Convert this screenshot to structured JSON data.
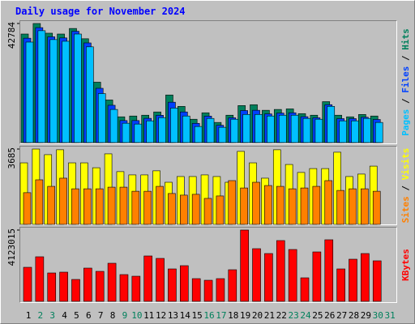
{
  "chart_data": [
    {
      "type": "bar",
      "title": "Daily usage for November 2024",
      "legend_separator": "/",
      "ylim": [
        0,
        42784
      ],
      "yticks": [
        42784
      ],
      "series": [
        {
          "name": "Hits",
          "color": "#00805c",
          "values": [
            39000,
            42784,
            39300,
            39000,
            41000,
            37300,
            21700,
            15300,
            9250,
            9540,
            9830,
            11000,
            17100,
            13000,
            8380,
            10700,
            7230,
            9830,
            13300,
            13600,
            11600,
            11900,
            12100,
            10400,
            9830,
            14700,
            9830,
            9250,
            10100,
            9540,
            0
          ]
        },
        {
          "name": "Files",
          "color": "#0040ff",
          "values": [
            37500,
            41300,
            38000,
            37600,
            40000,
            35800,
            19500,
            13400,
            7900,
            7900,
            8700,
            9800,
            14500,
            11000,
            6900,
            9500,
            6200,
            8900,
            11500,
            11600,
            10300,
            10600,
            10700,
            9300,
            8900,
            13600,
            8600,
            8600,
            9100,
            8300,
            0
          ]
        },
        {
          "name": "Pages",
          "color": "#00c0ff",
          "values": [
            36100,
            40200,
            37000,
            36400,
            39000,
            34400,
            17600,
            11900,
            6940,
            6650,
            7800,
            8960,
            12400,
            9540,
            5780,
            8670,
            5490,
            8380,
            10100,
            10100,
            9540,
            9830,
            9830,
            8670,
            8380,
            13000,
            7800,
            7800,
            8670,
            7230,
            0
          ]
        }
      ]
    },
    {
      "type": "bar",
      "legend_separator": "/",
      "ylim": [
        0,
        3685
      ],
      "yticks": [
        3685
      ],
      "series": [
        {
          "name": "Visits",
          "color": "#ffff00",
          "values": [
            3010,
            3685,
            3410,
            3650,
            3010,
            3010,
            2770,
            3450,
            2580,
            2420,
            2420,
            2620,
            2060,
            2340,
            2340,
            2420,
            2340,
            2060,
            3570,
            3010,
            2260,
            3650,
            2930,
            2540,
            2730,
            2730,
            3530,
            2340,
            2460,
            2850,
            0
          ]
        },
        {
          "name": "Sites",
          "color": "#ff8000",
          "values": [
            1550,
            2180,
            1860,
            2260,
            1740,
            1740,
            1740,
            1820,
            1820,
            1620,
            1620,
            1860,
            1510,
            1430,
            1470,
            1270,
            1390,
            2140,
            1780,
            2060,
            1900,
            1860,
            1740,
            1780,
            1860,
            2140,
            1660,
            1740,
            1740,
            1620,
            0
          ]
        }
      ]
    },
    {
      "type": "bar",
      "ylim": [
        0,
        4123015
      ],
      "yticks": [
        4123015
      ],
      "categories": [
        "1",
        "2",
        "3",
        "4",
        "5",
        "6",
        "7",
        "8",
        "9",
        "10",
        "11",
        "12",
        "13",
        "14",
        "15",
        "16",
        "17",
        "18",
        "19",
        "20",
        "21",
        "22",
        "23",
        "24",
        "25",
        "26",
        "27",
        "28",
        "29",
        "30",
        "31"
      ],
      "label_colors": [
        "#000000",
        "#00805c",
        "#00805c",
        "#000000",
        "#000000",
        "#000000",
        "#000000",
        "#000000",
        "#00805c",
        "#00805c",
        "#000000",
        "#000000",
        "#000000",
        "#000000",
        "#000000",
        "#00805c",
        "#00805c",
        "#000000",
        "#000000",
        "#000000",
        "#000000",
        "#000000",
        "#00805c",
        "#00805c",
        "#000000",
        "#000000",
        "#000000",
        "#000000",
        "#000000",
        "#00805c",
        "#00805c"
      ],
      "series": [
        {
          "name": "KBytes",
          "color": "#ff0000",
          "values": [
            1968000,
            2577000,
            1640000,
            1687000,
            1265000,
            1921000,
            1733000,
            2202000,
            1546000,
            1452000,
            2624000,
            2483000,
            1874000,
            2062000,
            1312000,
            1218000,
            1312000,
            1827000,
            4123015,
            3045000,
            2764000,
            3514000,
            2998000,
            1359000,
            2858000,
            3561000,
            1874000,
            2436000,
            2764000,
            2343000,
            0
          ]
        }
      ]
    }
  ]
}
